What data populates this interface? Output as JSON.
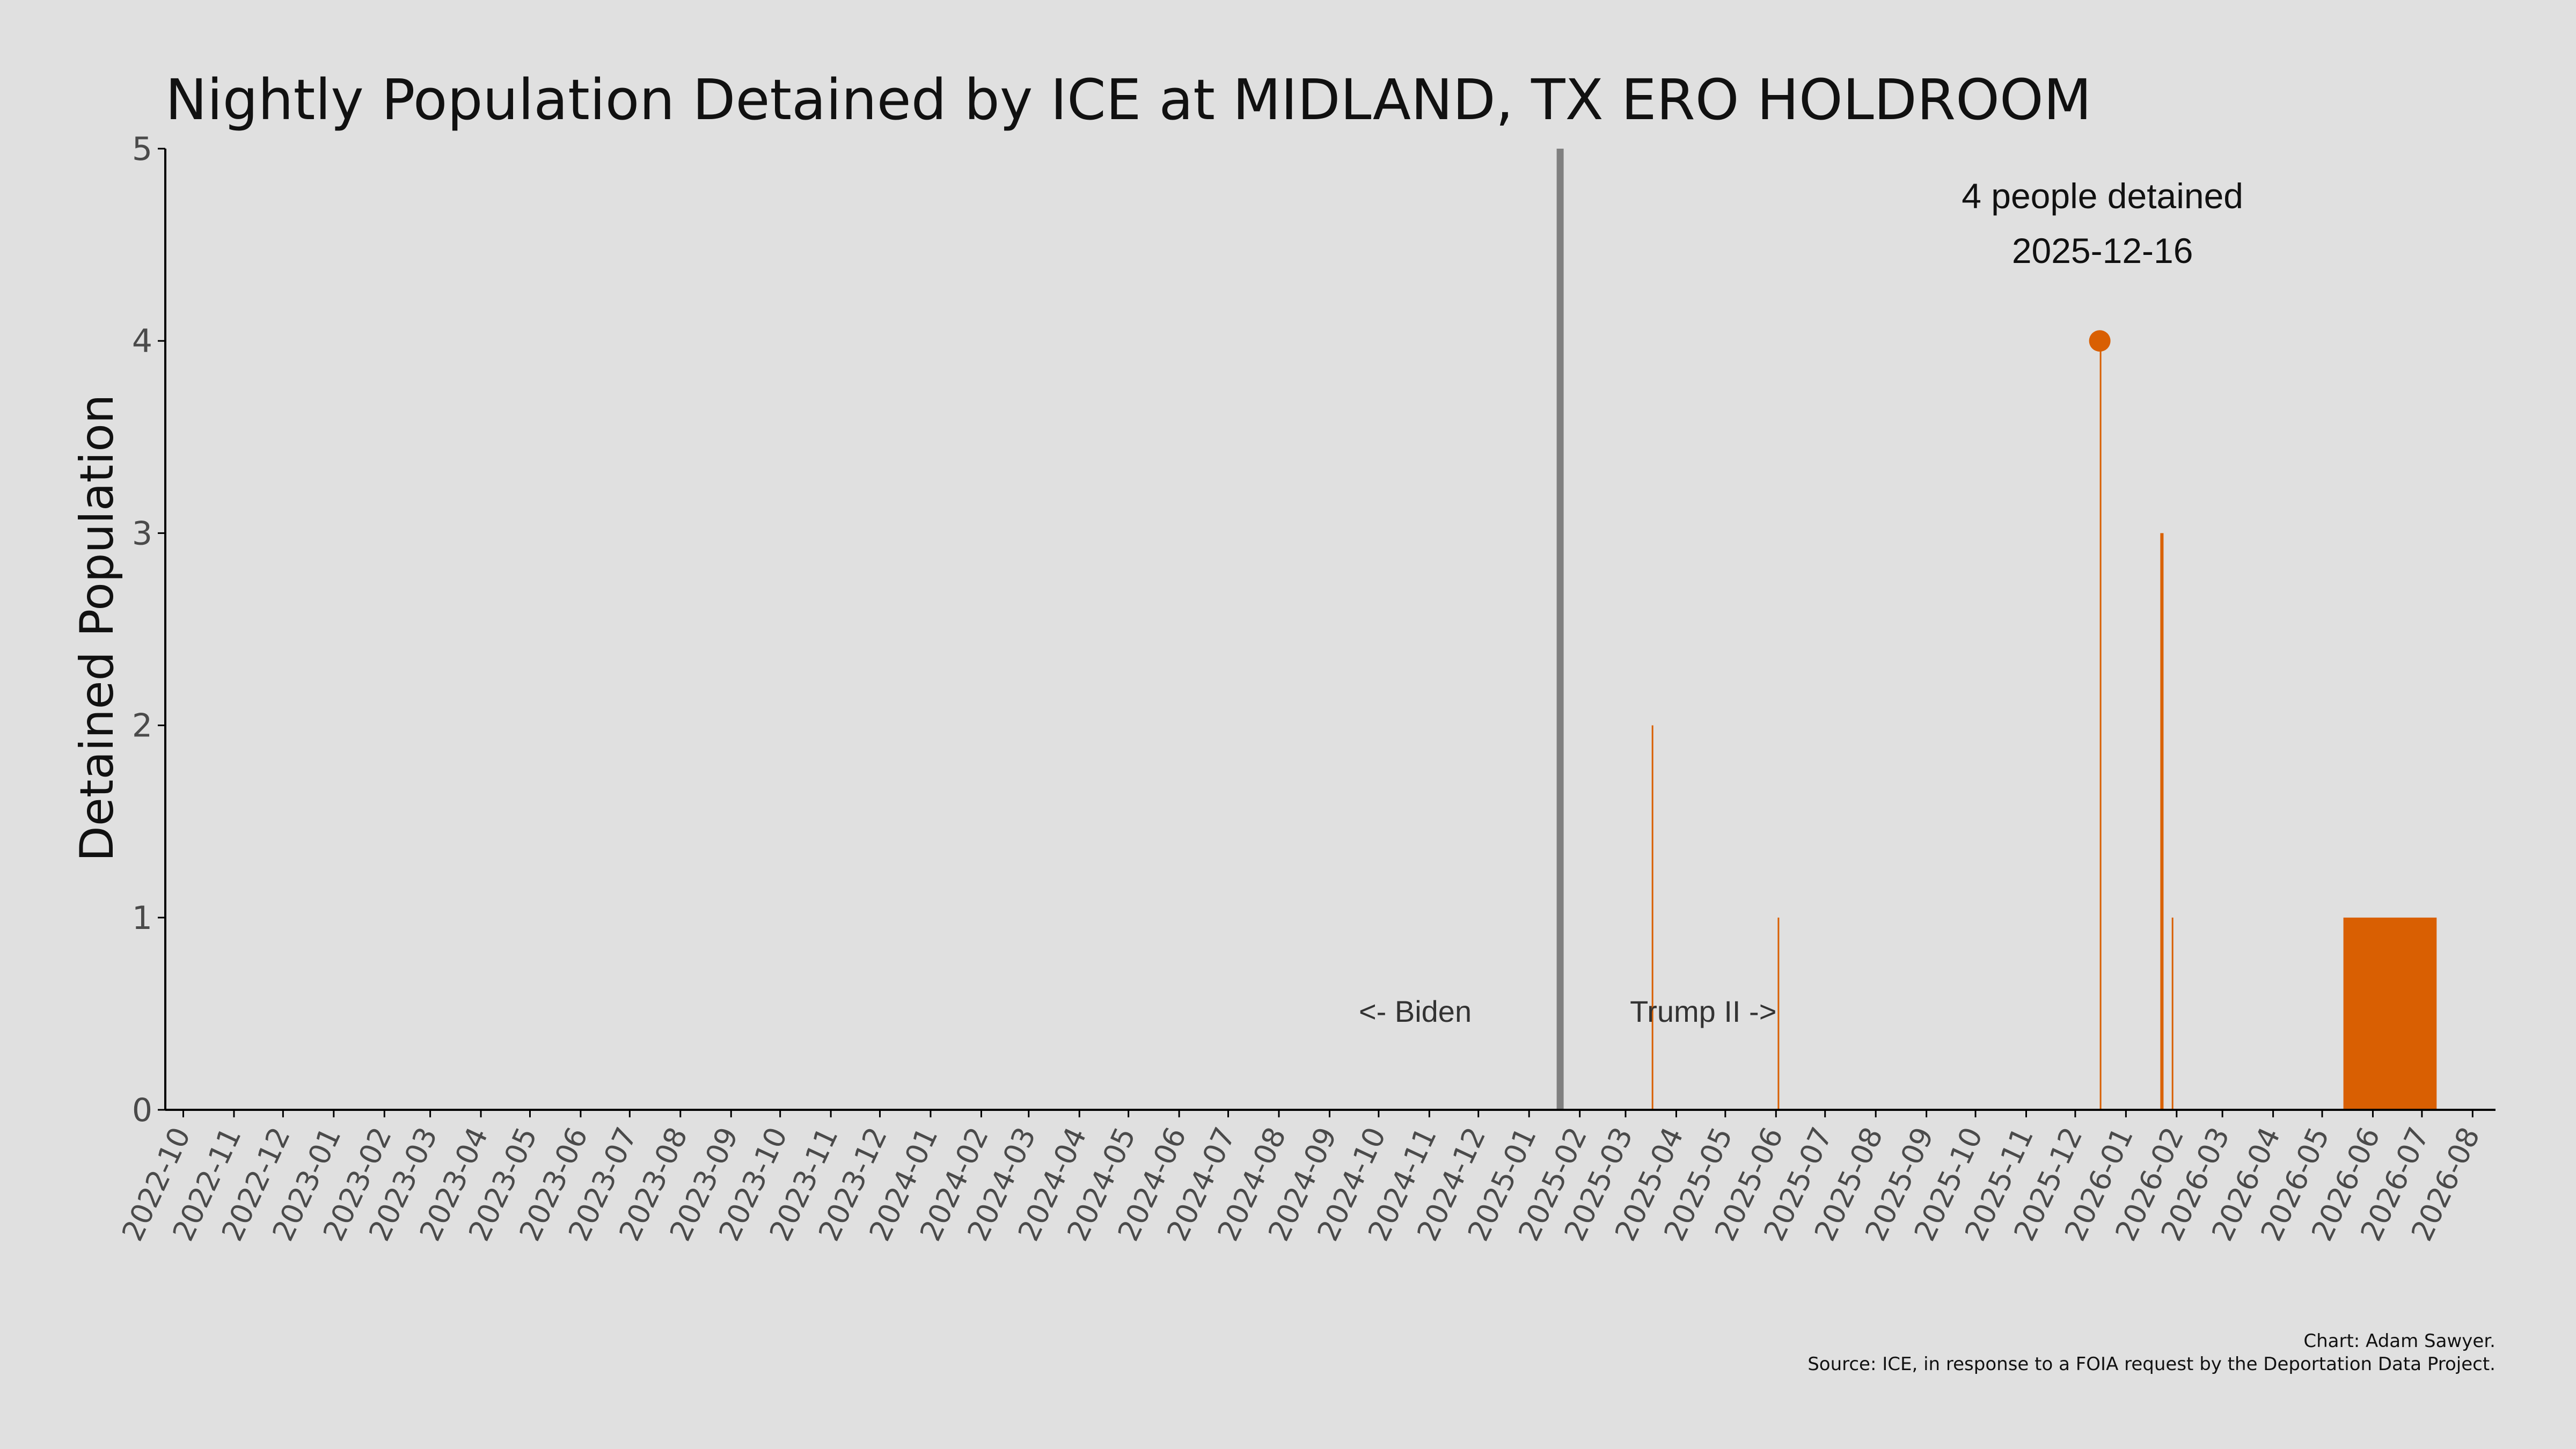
{
  "chart_data": {
    "type": "bar",
    "title": "Nightly Population Detained by ICE at MIDLAND, TX ERO HOLDROOM",
    "ylabel": "Detained Population",
    "xlabel": "",
    "ylim": [
      0,
      5
    ],
    "yticks": [
      0,
      1,
      2,
      3,
      4,
      5
    ],
    "xlim": [
      "2022-09-20",
      "2026-08-15"
    ],
    "xticks": [
      "2022-10",
      "2022-11",
      "2022-12",
      "2023-01",
      "2023-02",
      "2023-03",
      "2023-04",
      "2023-05",
      "2023-06",
      "2023-07",
      "2023-08",
      "2023-09",
      "2023-10",
      "2023-11",
      "2023-12",
      "2024-01",
      "2024-02",
      "2024-03",
      "2024-04",
      "2024-05",
      "2024-06",
      "2024-07",
      "2024-08",
      "2024-09",
      "2024-10",
      "2024-11",
      "2024-12",
      "2025-01",
      "2025-02",
      "2025-03",
      "2025-04",
      "2025-05",
      "2025-06",
      "2025-07",
      "2025-08",
      "2025-09",
      "2025-10",
      "2025-11",
      "2025-12",
      "2026-01",
      "2026-02",
      "2026-03",
      "2026-04",
      "2026-05",
      "2026-06",
      "2026-07",
      "2026-08"
    ],
    "grid": false,
    "bar_color": "#d95f02",
    "points": [
      {
        "date": "2025-03-17",
        "value": 2
      },
      {
        "date": "2025-06-02",
        "value": 1
      },
      {
        "date": "2025-12-16",
        "value": 4
      },
      {
        "date": "2026-01-22",
        "value": 3
      },
      {
        "date": "2026-01-23",
        "value": 3
      },
      {
        "date": "2026-01-29",
        "value": 1
      },
      {
        "date_start": "2026-05-14",
        "date_end": "2026-07-09",
        "value": 1
      }
    ],
    "peak": {
      "date": "2025-12-16",
      "value": 4,
      "label_line1": "4 people detained",
      "label_line2": "2025-12-16"
    },
    "divider": {
      "date": "2025-01-20",
      "color": "#808080",
      "left_label": "<- Biden",
      "right_label": "Trump II ->"
    }
  },
  "credits": {
    "line1": "Chart: Adam Sawyer.",
    "line2": "Source: ICE, in response to a FOIA request by the Deportation Data Project."
  }
}
